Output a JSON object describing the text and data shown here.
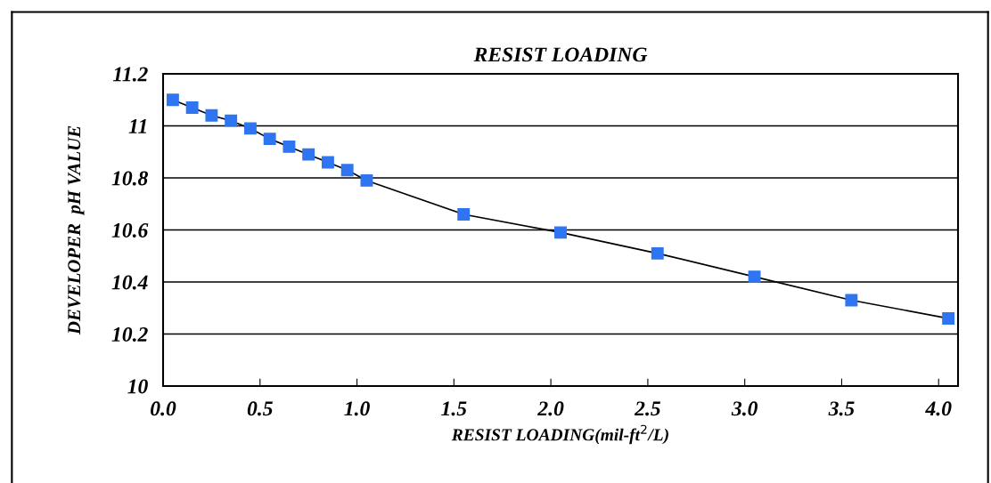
{
  "chart_data": {
    "type": "line",
    "title": "RESIST LOADING",
    "xlabel": "RESIST LOADING(mil-ft$^{2}$/L)",
    "ylabel": "DEVELOPER  pH VALUE",
    "x": [
      0.05,
      0.15,
      0.25,
      0.35,
      0.45,
      0.55,
      0.65,
      0.75,
      0.85,
      0.95,
      1.05,
      1.55,
      2.05,
      2.55,
      3.05,
      3.55,
      4.05
    ],
    "series": [
      {
        "color": "#2f74f0",
        "values": [
          11.1,
          11.07,
          11.04,
          11.02,
          10.99,
          10.95,
          10.92,
          10.89,
          10.86,
          10.83,
          10.79,
          10.66,
          10.59,
          10.51,
          10.42,
          10.33,
          10.26
        ]
      }
    ],
    "xlim": [
      0,
      4.1
    ],
    "xticks": [
      {
        "value": 0,
        "label": "0.0"
      },
      0.5,
      {
        "value": 1,
        "label": "1.0"
      },
      1.5,
      {
        "value": 2,
        "label": "2.0"
      },
      2.5,
      {
        "value": 3,
        "label": "3.0"
      },
      3.5,
      {
        "value": 4,
        "label": "4.0"
      }
    ],
    "ylim": [
      10,
      11.2
    ],
    "yticks": [
      10,
      10.2,
      10.4,
      10.6,
      10.8,
      11,
      11.2
    ],
    "grid": "y",
    "marker": "square",
    "line_style": "solid"
  }
}
